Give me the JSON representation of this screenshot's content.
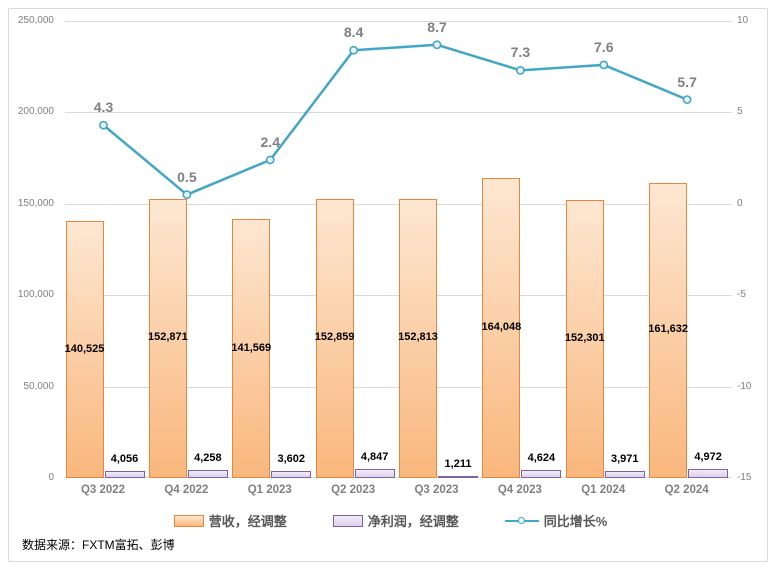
{
  "chart_data": {
    "type": "combo-bar-line",
    "categories": [
      "Q3 2022",
      "Q4 2022",
      "Q1 2023",
      "Q2 2023",
      "Q3 2023",
      "Q4 2023",
      "Q1 2024",
      "Q2 2024"
    ],
    "series": [
      {
        "name": "营收，经调整",
        "type": "bar",
        "axis": "left",
        "values": [
          140525,
          152871,
          141569,
          152859,
          152813,
          164048,
          152301,
          161632
        ],
        "labels": [
          "140,525",
          "152,871",
          "141,569",
          "152,859",
          "152,813",
          "164,048",
          "152,301",
          "161,632"
        ]
      },
      {
        "name": "净利润，经调整",
        "type": "bar",
        "axis": "left",
        "values": [
          4056,
          4258,
          3602,
          4847,
          1211,
          4624,
          3971,
          4972
        ],
        "labels": [
          "4,056",
          "4,258",
          "3,602",
          "4,847",
          "1,211",
          "4,624",
          "3,971",
          "4,972"
        ]
      },
      {
        "name": "同比增长%",
        "type": "line",
        "axis": "right",
        "values": [
          4.3,
          0.5,
          2.4,
          8.4,
          8.7,
          7.3,
          7.6,
          5.7
        ],
        "labels": [
          "4.3",
          "0.5",
          "2.4",
          "8.4",
          "8.7",
          "7.3",
          "7.6",
          "5.7"
        ]
      }
    ],
    "left_axis": {
      "min": 0,
      "max": 250000,
      "ticks": [
        "250,000",
        "200,000",
        "150,000",
        "100,000",
        "50,000",
        "0"
      ]
    },
    "right_axis": {
      "min": -15,
      "max": 10,
      "ticks": [
        "10",
        "5",
        "0",
        "-5",
        "-10",
        "-15"
      ]
    },
    "grid": true,
    "legend_position": "bottom"
  },
  "source_note": "数据来源：FXTM富拓、彭博",
  "colors": {
    "revenue_border": "#e8873b",
    "revenue_fill_top": "#fde7d2",
    "revenue_fill_bottom": "#f9b77d",
    "profit_border": "#7e62a1",
    "profit_fill_top": "#f1ecf8",
    "profit_fill_bottom": "#dcd0ec",
    "line": "#42a6c6",
    "marker_fill": "#eaf4f9",
    "gridline": "#d9d9d9",
    "axis_text": "#808080",
    "value_label_text": "#000000",
    "legend_text": "#595959",
    "frame_border": "#d9d9d9"
  }
}
